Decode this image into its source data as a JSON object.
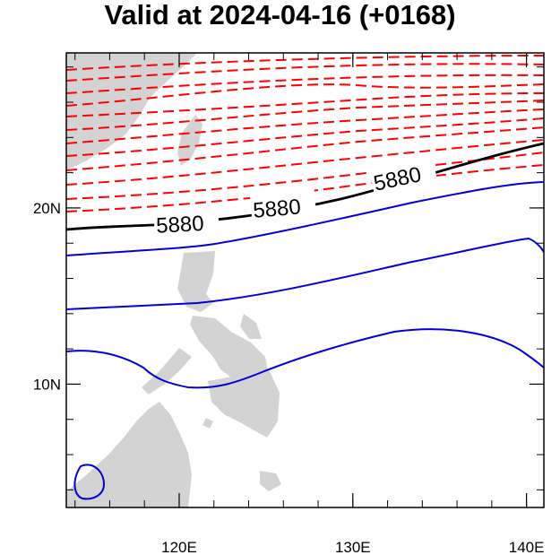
{
  "title": "Valid at 2024-04-16 (+0168)",
  "map": {
    "lon_range": [
      113.5,
      141
    ],
    "lat_range": [
      3,
      28.8
    ],
    "x_ticks": [
      {
        "value": 120,
        "label": "120E"
      },
      {
        "value": 130,
        "label": "130E"
      },
      {
        "value": 140,
        "label": "140E"
      }
    ],
    "y_ticks": [
      {
        "value": 10,
        "label": "10N"
      },
      {
        "value": 20,
        "label": "20N"
      }
    ],
    "land_color": "#d3d3d3",
    "contour_label": "5880",
    "colors": {
      "reference": "#000000",
      "above": "#ff0000",
      "below": "#0000dd"
    }
  }
}
